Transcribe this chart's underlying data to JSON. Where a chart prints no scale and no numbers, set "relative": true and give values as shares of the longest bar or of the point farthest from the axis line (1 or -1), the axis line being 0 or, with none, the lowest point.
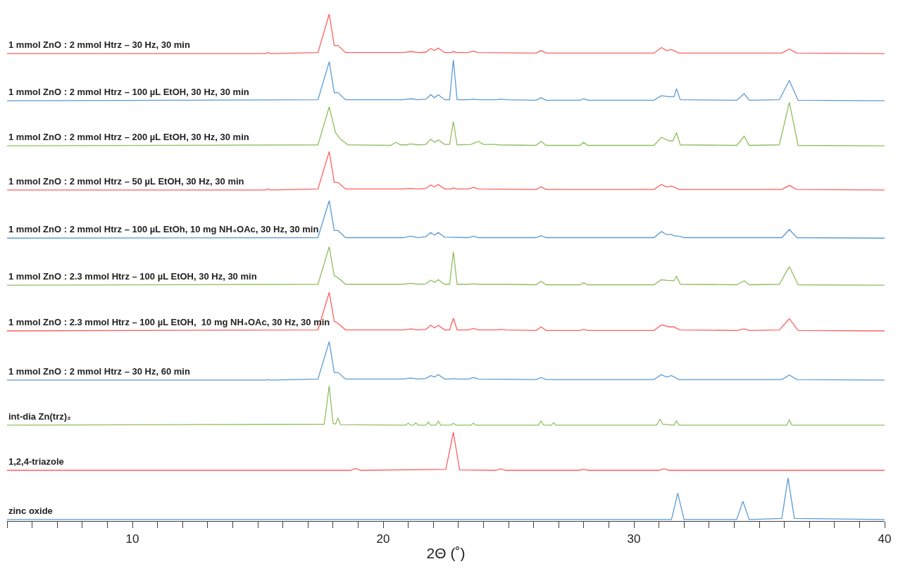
{
  "chart_data": {
    "type": "line",
    "relative": true,
    "xlabel": "2Θ (˚)",
    "xlim": [
      5,
      40
    ],
    "xticks": [
      {
        "value": 5,
        "label": null
      },
      {
        "value": 6,
        "label": null
      },
      {
        "value": 7,
        "label": null
      },
      {
        "value": 8,
        "label": null
      },
      {
        "value": 9,
        "label": null
      },
      10,
      {
        "value": 11,
        "label": null
      },
      {
        "value": 12,
        "label": null
      },
      {
        "value": 13,
        "label": null
      },
      {
        "value": 14,
        "label": null
      },
      {
        "value": 15,
        "label": null
      },
      {
        "value": 16,
        "label": null
      },
      {
        "value": 17,
        "label": null
      },
      {
        "value": 18,
        "label": null
      },
      {
        "value": 19,
        "label": null
      },
      20,
      {
        "value": 21,
        "label": null
      },
      {
        "value": 22,
        "label": null
      },
      {
        "value": 23,
        "label": null
      },
      {
        "value": 24,
        "label": null
      },
      {
        "value": 25,
        "label": null
      },
      {
        "value": 26,
        "label": null
      },
      {
        "value": 27,
        "label": null
      },
      {
        "value": 28,
        "label": null
      },
      {
        "value": 29,
        "label": null
      },
      30,
      {
        "value": 31,
        "label": null
      },
      {
        "value": 32,
        "label": null
      },
      {
        "value": 33,
        "label": null
      },
      {
        "value": 34,
        "label": null
      },
      {
        "value": 35,
        "label": null
      },
      {
        "value": 36,
        "label": null
      },
      {
        "value": 37,
        "label": null
      },
      {
        "value": 38,
        "label": null
      },
      {
        "value": 39,
        "label": null
      },
      40
    ],
    "series": [
      {
        "name": "1 mmol ZnO : 2 mmol Htrz – 30 Hz, 30 min",
        "color": "#ff5f5f",
        "x": [
          5,
          15.3,
          15.4,
          15.5,
          17.4,
          17.85,
          18.05,
          18.2,
          18.5,
          20.8,
          21.1,
          21.4,
          21.7,
          21.9,
          22.05,
          22.2,
          22.45,
          22.7,
          22.8,
          22.95,
          23.4,
          23.6,
          23.8,
          26.1,
          26.3,
          26.5,
          30.8,
          31.1,
          31.3,
          31.5,
          31.8,
          35.9,
          36.2,
          36.5,
          40
        ],
        "values": [
          0.922,
          0.922,
          0.924,
          0.922,
          0.924,
          1,
          0.938,
          0.938,
          0.924,
          0.924,
          0.926,
          0.924,
          0.925,
          0.932,
          0.928,
          0.933,
          0.924,
          0.924,
          0.926,
          0.924,
          0.924,
          0.927,
          0.924,
          0.923,
          0.928,
          0.923,
          0.923,
          0.934,
          0.928,
          0.93,
          0.923,
          0.923,
          0.931,
          0.923,
          0.922
        ]
      },
      {
        "name": "1 mmol ZnO : 2 mmol Htrz – 100 µL EtOH, 30 Hz, 30 min",
        "color": "#5b9bd5",
        "x": [
          5,
          17.4,
          17.85,
          18.05,
          18.2,
          18.5,
          20.8,
          21.1,
          21.4,
          21.7,
          21.9,
          22.05,
          22.2,
          22.45,
          22.65,
          22.8,
          22.95,
          23.4,
          23.6,
          23.8,
          24.5,
          24.7,
          24.9,
          26.1,
          26.3,
          26.5,
          27.85,
          28.0,
          28.15,
          30.8,
          31.1,
          31.4,
          31.6,
          31.7,
          31.85,
          34.1,
          34.4,
          34.6,
          35.8,
          36.2,
          36.55,
          40
        ],
        "values": [
          0.829,
          0.831,
          0.906,
          0.845,
          0.845,
          0.831,
          0.831,
          0.833,
          0.831,
          0.832,
          0.841,
          0.835,
          0.841,
          0.831,
          0.831,
          0.91,
          0.831,
          0.831,
          0.832,
          0.831,
          0.831,
          0.832,
          0.831,
          0.83,
          0.835,
          0.83,
          0.83,
          0.833,
          0.83,
          0.83,
          0.839,
          0.837,
          0.837,
          0.853,
          0.831,
          0.83,
          0.843,
          0.83,
          0.831,
          0.869,
          0.83,
          0.829
        ]
      },
      {
        "name": "1 mmol ZnO : 2 mmol Htrz – 200 µL EtOH, 30 Hz, 30 min",
        "color": "#8fbf5f",
        "x": [
          5,
          17.4,
          17.85,
          18.1,
          18.3,
          18.6,
          20.3,
          20.5,
          20.7,
          20.9,
          21.1,
          21.4,
          21.7,
          21.9,
          22.05,
          22.2,
          22.45,
          22.65,
          22.8,
          22.95,
          23.5,
          23.8,
          24.0,
          24.4,
          24.6,
          26.1,
          26.3,
          26.5,
          27.85,
          28.0,
          28.15,
          30.8,
          31.1,
          31.4,
          31.55,
          31.7,
          31.85,
          34.1,
          34.4,
          34.6,
          35.8,
          36.2,
          36.55,
          40
        ],
        "values": [
          0.74,
          0.742,
          0.817,
          0.766,
          0.753,
          0.742,
          0.741,
          0.747,
          0.742,
          0.742,
          0.744,
          0.742,
          0.743,
          0.753,
          0.747,
          0.752,
          0.743,
          0.743,
          0.788,
          0.742,
          0.743,
          0.749,
          0.743,
          0.743,
          0.742,
          0.741,
          0.749,
          0.741,
          0.741,
          0.747,
          0.741,
          0.741,
          0.757,
          0.75,
          0.75,
          0.766,
          0.742,
          0.741,
          0.759,
          0.741,
          0.742,
          0.826,
          0.741,
          0.74
        ]
      },
      {
        "name": "1 mmol ZnO : 2 mmol Htrz – 50 µL EtOH, 30 Hz, 30 min",
        "color": "#ff5f5f",
        "x": [
          5,
          15.3,
          15.4,
          15.5,
          17.4,
          17.85,
          18.05,
          18.2,
          18.5,
          20.8,
          21.1,
          21.4,
          21.7,
          21.9,
          22.05,
          22.2,
          22.45,
          22.7,
          22.8,
          22.95,
          23.4,
          23.6,
          23.8,
          26.1,
          26.3,
          26.5,
          30.8,
          31.1,
          31.3,
          31.5,
          31.8,
          35.9,
          36.2,
          36.5,
          40
        ],
        "values": [
          0.653,
          0.653,
          0.655,
          0.653,
          0.655,
          0.729,
          0.668,
          0.668,
          0.655,
          0.655,
          0.656,
          0.655,
          0.656,
          0.663,
          0.659,
          0.664,
          0.655,
          0.655,
          0.657,
          0.655,
          0.655,
          0.658,
          0.655,
          0.654,
          0.659,
          0.654,
          0.654,
          0.664,
          0.659,
          0.661,
          0.654,
          0.654,
          0.662,
          0.654,
          0.653
        ]
      },
      {
        "name": "1 mmol ZnO : 2 mmol Htrz – 100 µL EtOh, 10 mg NH₄OAc, 30 Hz, 30 min",
        "color": "#5b9bd5",
        "x": [
          5,
          17.4,
          17.85,
          18.05,
          18.2,
          18.5,
          20.8,
          21.1,
          21.4,
          21.7,
          21.9,
          22.05,
          22.2,
          22.45,
          23.4,
          23.6,
          23.8,
          26.1,
          26.3,
          26.5,
          30.8,
          31.1,
          31.3,
          31.5,
          31.65,
          31.8,
          32.0,
          35.9,
          36.2,
          36.5,
          40
        ],
        "values": [
          0.558,
          0.559,
          0.632,
          0.573,
          0.573,
          0.559,
          0.559,
          0.562,
          0.559,
          0.561,
          0.569,
          0.564,
          0.569,
          0.56,
          0.559,
          0.562,
          0.559,
          0.559,
          0.563,
          0.559,
          0.559,
          0.571,
          0.565,
          0.565,
          0.562,
          0.562,
          0.559,
          0.559,
          0.575,
          0.559,
          0.558
        ]
      },
      {
        "name": "1 mmol ZnO : 2.3 mmol Htrz – 100 µL EtOH, 30 Hz, 30 min",
        "color": "#8fbf5f",
        "x": [
          5,
          17.4,
          17.85,
          18.05,
          18.2,
          18.5,
          20.8,
          21.1,
          21.4,
          21.7,
          21.9,
          22.05,
          22.2,
          22.45,
          22.65,
          22.8,
          22.95,
          23.4,
          23.6,
          23.8,
          24.5,
          24.7,
          24.9,
          26.1,
          26.3,
          26.5,
          27.85,
          28.0,
          28.15,
          30.8,
          31.1,
          31.4,
          31.6,
          31.7,
          31.85,
          34.1,
          34.4,
          34.6,
          35.8,
          36.2,
          36.55,
          40
        ],
        "values": [
          0.465,
          0.467,
          0.541,
          0.484,
          0.48,
          0.467,
          0.467,
          0.469,
          0.467,
          0.468,
          0.475,
          0.471,
          0.476,
          0.467,
          0.467,
          0.531,
          0.467,
          0.467,
          0.468,
          0.467,
          0.467,
          0.467,
          0.467,
          0.466,
          0.473,
          0.466,
          0.466,
          0.47,
          0.466,
          0.466,
          0.476,
          0.474,
          0.474,
          0.483,
          0.467,
          0.466,
          0.474,
          0.466,
          0.467,
          0.502,
          0.466,
          0.465
        ]
      },
      {
        "name": "1 mmol ZnO : 2.3 mmol Htrz – 100 µL EtOH,  10 mg NH₄OAc, 30 Hz, 30 min",
        "color": "#ff5f5f",
        "x": [
          5,
          17.4,
          17.85,
          18.05,
          18.2,
          18.5,
          20.8,
          21.1,
          21.4,
          21.7,
          21.9,
          22.05,
          22.2,
          22.45,
          22.65,
          22.8,
          22.95,
          23.4,
          23.6,
          23.8,
          24.5,
          24.7,
          24.9,
          26.1,
          26.3,
          26.5,
          27.85,
          28.0,
          28.15,
          30.8,
          31.1,
          31.4,
          31.6,
          31.7,
          31.85,
          34.1,
          34.4,
          34.6,
          35.8,
          36.2,
          36.55,
          40
        ],
        "values": [
          0.375,
          0.377,
          0.451,
          0.394,
          0.39,
          0.377,
          0.377,
          0.379,
          0.377,
          0.378,
          0.386,
          0.381,
          0.386,
          0.377,
          0.377,
          0.4,
          0.377,
          0.377,
          0.38,
          0.377,
          0.377,
          0.378,
          0.377,
          0.376,
          0.383,
          0.376,
          0.376,
          0.378,
          0.376,
          0.376,
          0.387,
          0.383,
          0.383,
          0.38,
          0.377,
          0.376,
          0.379,
          0.376,
          0.377,
          0.399,
          0.376,
          0.375
        ]
      },
      {
        "name": "1 mmol ZnO : 2 mmol Htrz – 30 Hz, 60 min",
        "color": "#5b9bd5",
        "x": [
          5,
          15.3,
          15.4,
          15.5,
          17.4,
          17.85,
          18.05,
          18.2,
          18.5,
          20.8,
          21.1,
          21.4,
          21.7,
          21.9,
          22.05,
          22.2,
          22.45,
          22.7,
          22.8,
          22.95,
          23.4,
          23.6,
          23.8,
          26.1,
          26.3,
          26.5,
          30.8,
          31.1,
          31.3,
          31.5,
          31.8,
          35.9,
          36.2,
          36.5,
          40
        ],
        "values": [
          0.278,
          0.278,
          0.279,
          0.278,
          0.28,
          0.354,
          0.293,
          0.293,
          0.28,
          0.28,
          0.282,
          0.28,
          0.281,
          0.287,
          0.284,
          0.289,
          0.28,
          0.28,
          0.281,
          0.28,
          0.28,
          0.283,
          0.28,
          0.279,
          0.283,
          0.279,
          0.279,
          0.289,
          0.284,
          0.287,
          0.279,
          0.279,
          0.288,
          0.279,
          0.278
        ]
      },
      {
        "name": "int-dia Zn(trz)₂",
        "color": "#8fbf5f",
        "x": [
          5,
          17.65,
          17.85,
          18.0,
          18.1,
          18.2,
          18.3,
          20.9,
          21.0,
          21.1,
          21.2,
          21.3,
          21.4,
          21.7,
          21.8,
          21.9,
          22.1,
          22.2,
          22.3,
          22.7,
          22.8,
          22.9,
          23.5,
          23.6,
          23.7,
          26.2,
          26.3,
          26.4,
          26.7,
          26.8,
          26.9,
          30.9,
          31.05,
          31.15,
          31.6,
          31.7,
          31.8,
          36.1,
          36.2,
          36.3,
          40
        ],
        "values": [
          0.189,
          0.191,
          0.267,
          0.193,
          0.191,
          0.203,
          0.19,
          0.189,
          0.193,
          0.189,
          0.189,
          0.194,
          0.189,
          0.189,
          0.195,
          0.189,
          0.189,
          0.197,
          0.189,
          0.189,
          0.193,
          0.189,
          0.189,
          0.193,
          0.189,
          0.189,
          0.198,
          0.189,
          0.189,
          0.194,
          0.189,
          0.189,
          0.201,
          0.191,
          0.189,
          0.198,
          0.189,
          0.189,
          0.2,
          0.189,
          0.189
        ]
      },
      {
        "name": "1,2,4-triazole",
        "color": "#ff5f5f",
        "x": [
          5,
          18.7,
          18.9,
          19.1,
          22.5,
          22.8,
          23.05,
          24.5,
          24.7,
          24.9,
          27.8,
          28.0,
          28.2,
          31.0,
          31.2,
          31.4,
          40
        ],
        "values": [
          0.1,
          0.1,
          0.104,
          0.1,
          0.102,
          0.175,
          0.101,
          0.1,
          0.103,
          0.1,
          0.1,
          0.102,
          0.1,
          0.1,
          0.103,
          0.1,
          0.1
        ]
      },
      {
        "name": "zinc oxide",
        "color": "#5b9bd5",
        "x": [
          5,
          31.5,
          31.75,
          32.0,
          34.1,
          34.35,
          34.6,
          35.9,
          36.15,
          36.4,
          40
        ],
        "values": [
          0.003,
          0.003,
          0.055,
          0.003,
          0.003,
          0.039,
          0.003,
          0.005,
          0.085,
          0.005,
          0.003
        ]
      }
    ]
  }
}
